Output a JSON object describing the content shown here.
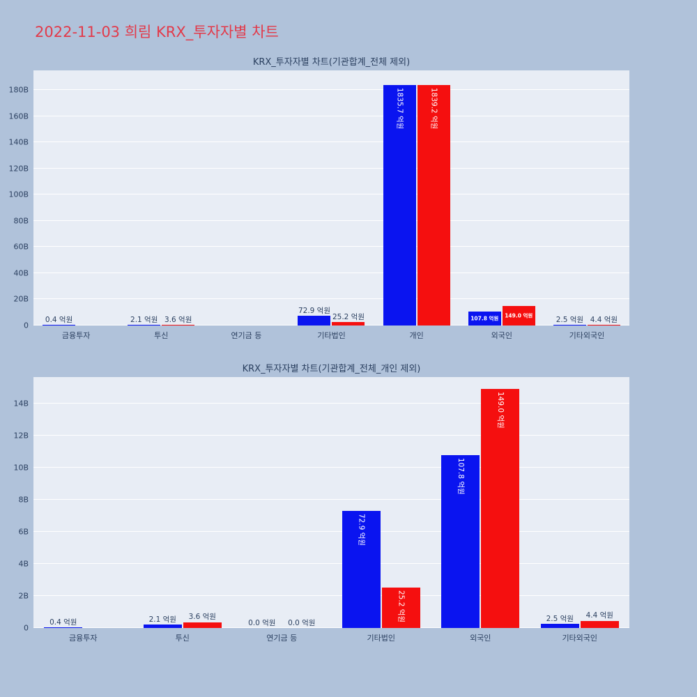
{
  "page_title": "2022-11-03 희림 KRX_투자자별 차트",
  "colors": {
    "page_background": "#b0c2da",
    "plot_background": "#e8edf5",
    "gridline": "#ffffff",
    "title_red": "#e23a4a",
    "axis_text": "#2a3f5f",
    "series_blue": "#0a14f0",
    "series_red": "#f50f0f"
  },
  "unit": "억원",
  "chart_data": [
    {
      "type": "bar",
      "title": "KRX_투자자별 차트(기관합계_전체 제외)",
      "categories": [
        "금융투자",
        "투신",
        "연기금 등",
        "기타법인",
        "개인",
        "외국인",
        "기타외국인"
      ],
      "y_axis": {
        "ticks_billion": [
          0,
          20,
          40,
          60,
          80,
          100,
          120,
          140,
          160,
          180
        ],
        "tick_labels": [
          "0",
          "20B",
          "40B",
          "60B",
          "80B",
          "100B",
          "120B",
          "140B",
          "160B",
          "180B"
        ],
        "ylim_billion": [
          0,
          195
        ]
      },
      "legend": "none",
      "grid": "on",
      "series": [
        {
          "name": "blue-series",
          "color": "#0a14f0",
          "values_eokwon": [
            0.4,
            2.1,
            0.0,
            72.9,
            1835.7,
            107.8,
            2.5
          ],
          "labels": [
            "0.4 억원",
            "2.1 억원",
            "",
            "72.9 억원",
            "1835.7 억원",
            "107.8 억원",
            "2.5 억원"
          ],
          "label_modes": [
            "out",
            "out",
            "none",
            "out",
            "in-v",
            "in-h",
            "out"
          ]
        },
        {
          "name": "red-series",
          "color": "#f50f0f",
          "values_eokwon": [
            null,
            3.6,
            0.0,
            25.2,
            1839.2,
            149.0,
            4.4
          ],
          "labels": [
            "",
            "3.6 억원",
            "",
            "25.2 억원",
            "1839.2 억원",
            "149.0 억원",
            "4.4 억원"
          ],
          "label_modes": [
            "none",
            "out",
            "none",
            "out",
            "in-v",
            "in-h",
            "out"
          ]
        }
      ]
    },
    {
      "type": "bar",
      "title": "KRX_투자자별 차트(기관합계_전체_개인 제외)",
      "categories": [
        "금융투자",
        "투신",
        "연기금 등",
        "기타법인",
        "외국인",
        "기타외국인"
      ],
      "y_axis": {
        "ticks_billion": [
          0,
          2,
          4,
          6,
          8,
          10,
          12,
          14
        ],
        "tick_labels": [
          "0",
          "2B",
          "4B",
          "6B",
          "8B",
          "10B",
          "12B",
          "14B"
        ],
        "ylim_billion": [
          0,
          15.65
        ]
      },
      "legend": "none",
      "grid": "on",
      "series": [
        {
          "name": "blue-series",
          "color": "#0a14f0",
          "values_eokwon": [
            0.4,
            2.1,
            0.0,
            72.9,
            107.8,
            2.5
          ],
          "labels": [
            "0.4 억원",
            "2.1 억원",
            "0.0 억원",
            "72.9 억원",
            "107.8 억원",
            "2.5 억원"
          ],
          "label_modes": [
            "out",
            "out",
            "out",
            "in-v",
            "in-v",
            "out"
          ]
        },
        {
          "name": "red-series",
          "color": "#f50f0f",
          "values_eokwon": [
            null,
            3.6,
            0.0,
            25.2,
            149.0,
            4.4
          ],
          "labels": [
            "",
            "3.6 억원",
            "0.0 억원",
            "25.2 억원",
            "149.0 억원",
            "4.4 억원"
          ],
          "label_modes": [
            "none",
            "out",
            "out",
            "in-v",
            "in-v",
            "out"
          ]
        }
      ]
    }
  ]
}
